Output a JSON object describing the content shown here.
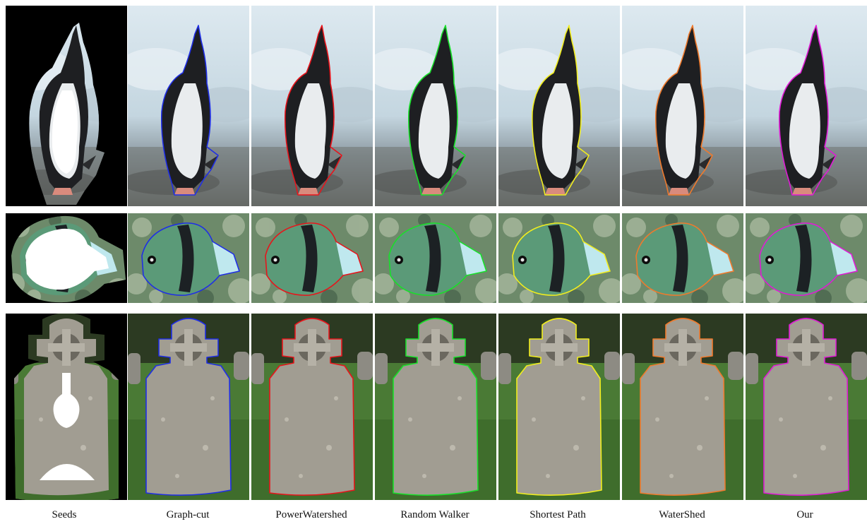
{
  "columns": [
    {
      "label": "Seeds",
      "kind": "seeds",
      "contour_color": "#ffffff"
    },
    {
      "label": "Graph-cut",
      "kind": "result",
      "contour_color": "#1f2ee6"
    },
    {
      "label": "PowerWatershed",
      "kind": "result",
      "contour_color": "#e8141b"
    },
    {
      "label": "Random Walker",
      "kind": "result",
      "contour_color": "#18e02a"
    },
    {
      "label": "Shortest Path",
      "kind": "result",
      "contour_color": "#f2ee1e"
    },
    {
      "label": "WaterShed",
      "kind": "result",
      "contour_color": "#f07a2c"
    },
    {
      "label": "Our",
      "kind": "result",
      "contour_color": "#e01ad6"
    }
  ],
  "rows": [
    {
      "subject": "penguin"
    },
    {
      "subject": "fish"
    },
    {
      "subject": "gravestone"
    }
  ]
}
